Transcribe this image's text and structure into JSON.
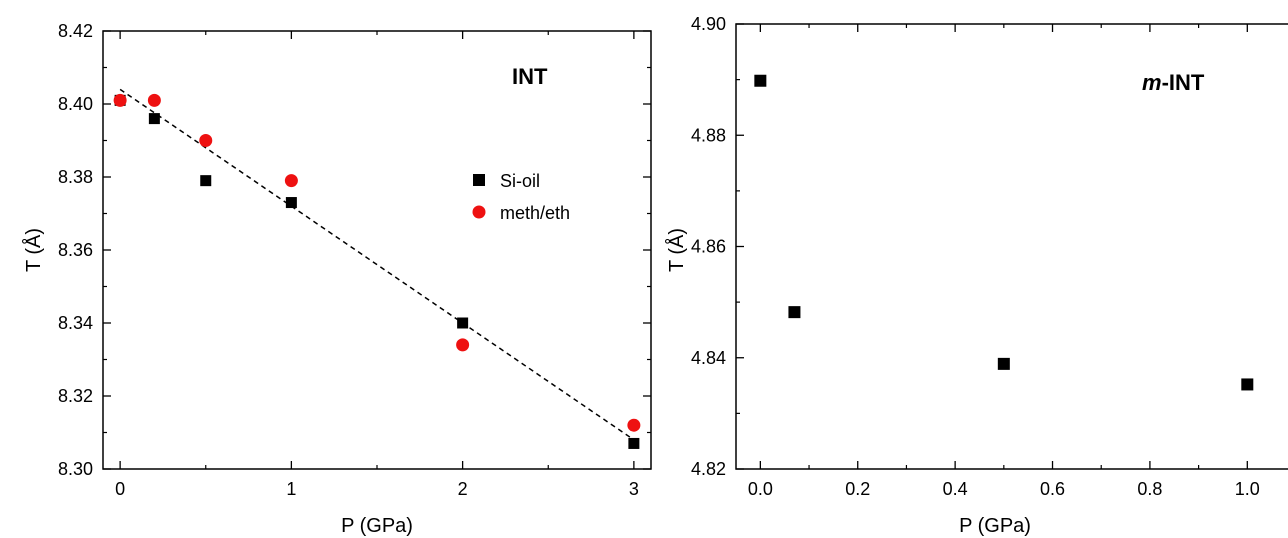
{
  "chart_data": [
    {
      "type": "scatter",
      "title": "",
      "panel_label": "INT",
      "xlabel": "P (GPa)",
      "ylabel": "T (Å)",
      "xlim": [
        -0.1,
        3.1
      ],
      "ylim": [
        8.3,
        8.42
      ],
      "xticks": [
        0,
        1,
        2,
        3
      ],
      "xtick_labels": [
        "0",
        "1",
        "2",
        "3"
      ],
      "yticks": [
        8.3,
        8.32,
        8.34,
        8.36,
        8.38,
        8.4,
        8.42
      ],
      "ytick_labels": [
        "8.30",
        "8.32",
        "8.34",
        "8.36",
        "8.38",
        "8.40",
        "8.42"
      ],
      "grid": false,
      "legend_position": "right",
      "series": [
        {
          "name": "Si-oil",
          "marker": "square",
          "color": "#000000",
          "x": [
            0,
            0.2,
            0.5,
            1,
            2,
            3
          ],
          "y": [
            8.401,
            8.396,
            8.379,
            8.373,
            8.34,
            8.307
          ]
        },
        {
          "name": "meth/eth",
          "marker": "circle",
          "color": "#ee1111",
          "x": [
            0,
            0.2,
            0.5,
            1,
            2,
            3
          ],
          "y": [
            8.401,
            8.401,
            8.39,
            8.379,
            8.334,
            8.312
          ]
        }
      ],
      "fit_line": {
        "style": "dashed",
        "color": "#000000",
        "x": [
          0,
          3
        ],
        "y": [
          8.404,
          8.308
        ]
      }
    },
    {
      "type": "scatter",
      "title": "",
      "panel_label_prefix": "m",
      "panel_label_suffix": "-INT",
      "xlabel": "P (GPa)",
      "ylabel": "T (Å)",
      "xlim": [
        -0.05,
        1.1
      ],
      "ylim": [
        4.82,
        4.9
      ],
      "xticks": [
        0.0,
        0.2,
        0.4,
        0.6,
        0.8,
        1.0
      ],
      "xtick_labels": [
        "0.0",
        "0.2",
        "0.4",
        "0.6",
        "0.8",
        "1.0"
      ],
      "yticks": [
        4.82,
        4.84,
        4.86,
        4.88,
        4.9
      ],
      "ytick_labels": [
        "4.82",
        "4.84",
        "4.86",
        "4.88",
        "4.90"
      ],
      "grid": false,
      "series": [
        {
          "marker": "square",
          "color": "#000000",
          "x": [
            0.0,
            0.07,
            0.5,
            1.0
          ],
          "y": [
            4.8898,
            4.8482,
            4.8389,
            4.8352
          ]
        }
      ]
    }
  ]
}
